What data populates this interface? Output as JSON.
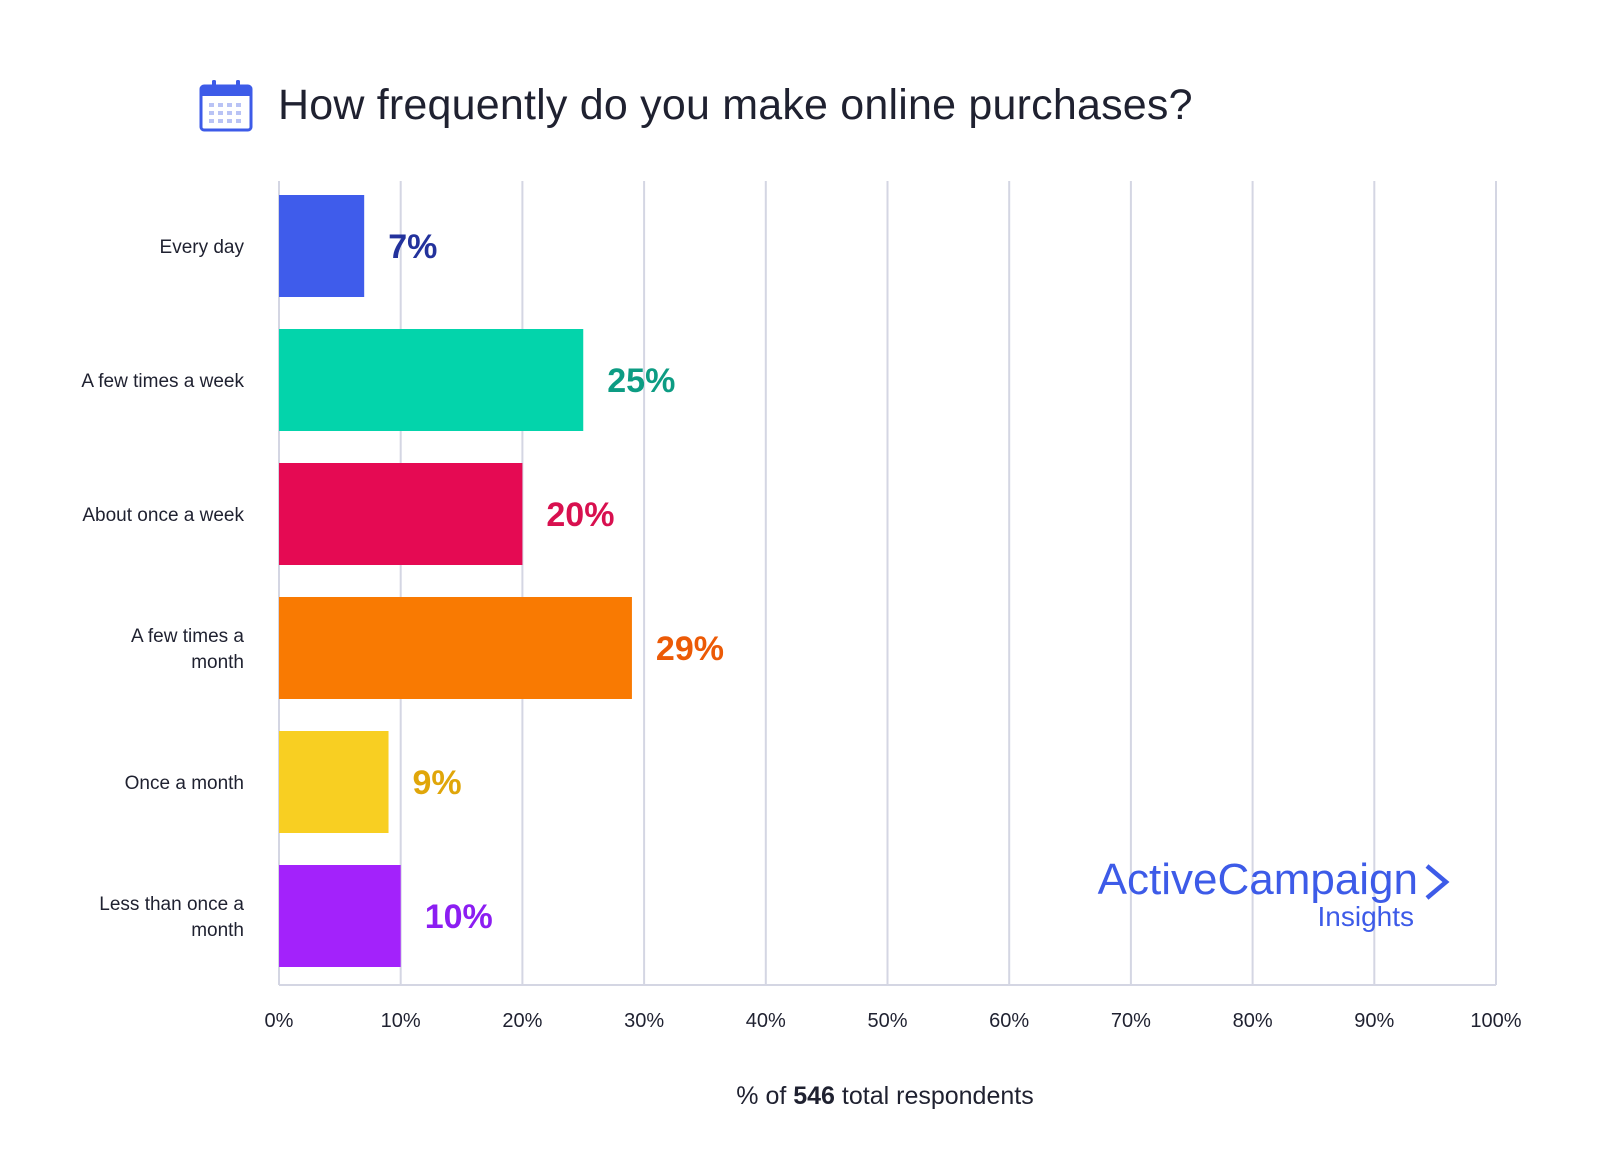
{
  "title": "How frequently do you make online purchases?",
  "title_icon": "calendar-icon",
  "footnote": {
    "prefix": "% of",
    "count": "546",
    "suffix": "total respondents"
  },
  "brand": {
    "name": "ActiveCampaign",
    "sub": "Insights",
    "icon": "chevron-right-icon",
    "color": "#3d5be8"
  },
  "chart_data": {
    "type": "bar",
    "orientation": "horizontal",
    "categories": [
      "Every day",
      "A few times a week",
      "About once a week",
      "A few times a month",
      "Once a month",
      "Less than once a month"
    ],
    "category_lines": [
      [
        "Every day"
      ],
      [
        "A few times a week"
      ],
      [
        "About once a week"
      ],
      [
        "A few times a",
        "month"
      ],
      [
        "Once a month"
      ],
      [
        "Less than once a",
        "month"
      ]
    ],
    "values": [
      7,
      25,
      20,
      29,
      9,
      10
    ],
    "value_labels": [
      "7%",
      "25%",
      "20%",
      "29%",
      "9%",
      "10%"
    ],
    "bar_colors": [
      "#3f5ceb",
      "#03d4ab",
      "#e50a53",
      "#f97a02",
      "#f8cf22",
      "#a322fb"
    ],
    "label_colors": [
      "#23329c",
      "#0d9c83",
      "#d8104f",
      "#ec5a06",
      "#e0a60a",
      "#8c1ef2"
    ],
    "xlim": [
      0,
      100
    ],
    "xticks": [
      0,
      10,
      20,
      30,
      40,
      50,
      60,
      70,
      80,
      90,
      100
    ],
    "xtick_labels": [
      "0%",
      "10%",
      "20%",
      "30%",
      "40%",
      "50%",
      "60%",
      "70%",
      "80%",
      "90%",
      "100%"
    ],
    "grid": true
  }
}
